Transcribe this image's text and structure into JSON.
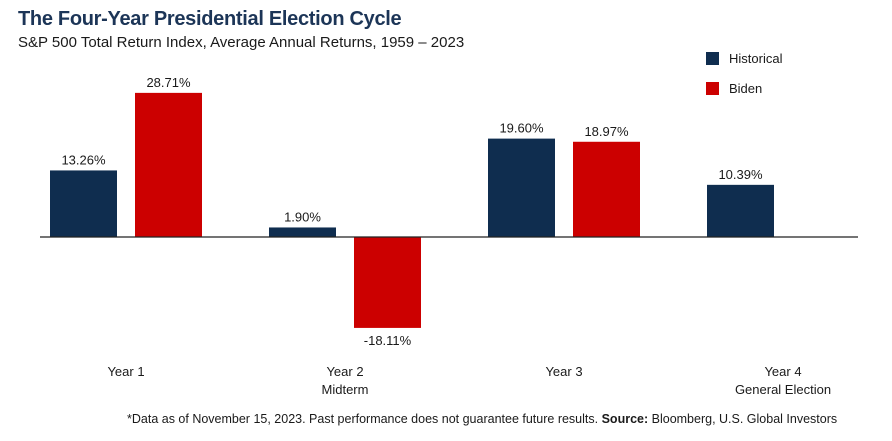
{
  "chart_data": {
    "type": "bar",
    "title": "The Four-Year Presidential Election Cycle",
    "subtitle": "S&P 500 Total Return Index, Average Annual Returns, 1959 – 2023",
    "categories": [
      {
        "label": "Year 1",
        "sublabel": ""
      },
      {
        "label": "Year 2",
        "sublabel": "Midterm"
      },
      {
        "label": "Year 3",
        "sublabel": ""
      },
      {
        "label": "Year 4",
        "sublabel": "General Election"
      }
    ],
    "series": [
      {
        "name": "Historical",
        "color": "#0f2d4f",
        "values": [
          13.26,
          1.9,
          19.6,
          10.39
        ],
        "labels": [
          "13.26%",
          "1.90%",
          "19.60%",
          "10.39%"
        ]
      },
      {
        "name": "Biden",
        "color": "#cc0000",
        "values": [
          28.71,
          -18.11,
          18.97,
          null
        ],
        "labels": [
          "28.71%",
          "-18.11%",
          "18.97%",
          ""
        ]
      }
    ],
    "ylim": [
      -20,
      32
    ],
    "grid": false,
    "legend_position": "top-right"
  },
  "footnote": {
    "text": "*Data as of November 15, 2023. Past performance does not guarantee future results.",
    "source_label": "Source:",
    "source_text": "Bloomberg, U.S. Global Investors"
  }
}
